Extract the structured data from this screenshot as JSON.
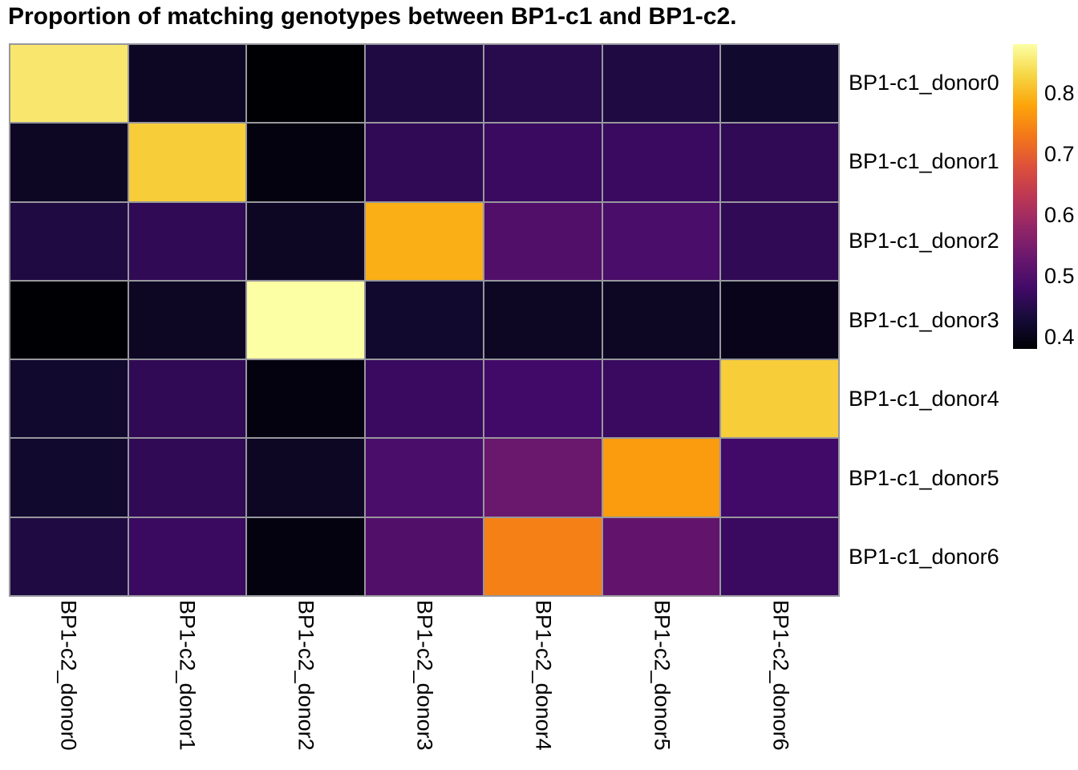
{
  "title": "Proportion of matching genotypes between BP1-c1 and BP1-c2.",
  "chart_data": {
    "type": "heatmap",
    "rows": [
      "BP1-c1_donor0",
      "BP1-c1_donor1",
      "BP1-c1_donor2",
      "BP1-c1_donor3",
      "BP1-c1_donor4",
      "BP1-c1_donor5",
      "BP1-c1_donor6"
    ],
    "columns": [
      "BP1-c2_donor0",
      "BP1-c2_donor1",
      "BP1-c2_donor2",
      "BP1-c2_donor3",
      "BP1-c2_donor4",
      "BP1-c2_donor5",
      "BP1-c2_donor6"
    ],
    "values": [
      [
        0.85,
        0.41,
        0.38,
        0.44,
        0.45,
        0.44,
        0.42
      ],
      [
        0.41,
        0.82,
        0.39,
        0.46,
        0.47,
        0.47,
        0.46
      ],
      [
        0.44,
        0.46,
        0.41,
        0.79,
        0.5,
        0.49,
        0.46
      ],
      [
        0.38,
        0.41,
        0.88,
        0.42,
        0.41,
        0.41,
        0.4
      ],
      [
        0.42,
        0.46,
        0.39,
        0.47,
        0.48,
        0.47,
        0.82
      ],
      [
        0.42,
        0.46,
        0.41,
        0.49,
        0.53,
        0.77,
        0.48
      ],
      [
        0.44,
        0.47,
        0.39,
        0.5,
        0.74,
        0.52,
        0.47
      ]
    ],
    "colormap": "inferno",
    "vmin": 0.38,
    "vmax": 0.88,
    "colorbar_ticks": [
      0.8,
      0.7,
      0.6,
      0.5,
      0.4
    ],
    "grid_color": "#97979d",
    "legend_position": "right"
  }
}
